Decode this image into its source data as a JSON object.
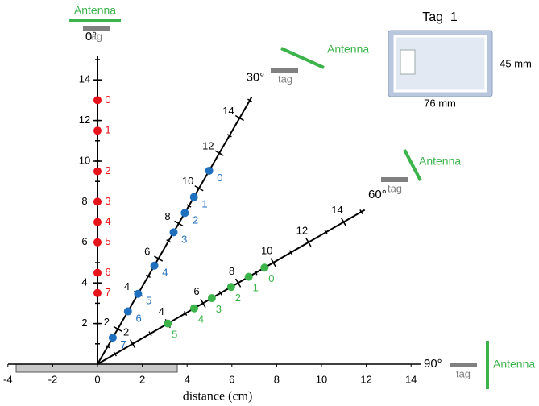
{
  "x_axis": {
    "label": "distance (cm)",
    "ticks": [
      -4,
      -2,
      0,
      2,
      4,
      6,
      8,
      10,
      12,
      14
    ]
  },
  "rays": [
    {
      "label": "0°",
      "angle": 0,
      "color": "#e8141c",
      "ticks": [
        2,
        4,
        6,
        8,
        10,
        12,
        14
      ],
      "points": [
        {
          "label": "0",
          "distance": 13
        },
        {
          "label": "1",
          "distance": 11.5
        },
        {
          "label": "2",
          "distance": 9.5
        },
        {
          "label": "3",
          "distance": 8
        },
        {
          "label": "4",
          "distance": 7
        },
        {
          "label": "5",
          "distance": 6
        },
        {
          "label": "6",
          "distance": 4.5
        },
        {
          "label": "7",
          "distance": 3.5
        }
      ]
    },
    {
      "label": "30°",
      "angle": 30,
      "color": "#1f6fbf",
      "ticks": [
        2,
        4,
        6,
        8,
        10,
        12,
        14
      ],
      "points": [
        {
          "label": "0",
          "distance": 11
        },
        {
          "label": "1",
          "distance": 9.5
        },
        {
          "label": "2",
          "distance": 8.6
        },
        {
          "label": "3",
          "distance": 7.5
        },
        {
          "label": "4",
          "distance": 5.6
        },
        {
          "label": "5",
          "distance": 4
        },
        {
          "label": "6",
          "distance": 3
        },
        {
          "label": "7",
          "distance": 1.5
        }
      ]
    },
    {
      "label": "60°",
      "angle": 60,
      "color": "#3cb44b",
      "ticks": [
        2,
        4,
        6,
        8,
        10,
        12,
        14
      ],
      "points": [
        {
          "label": "0",
          "distance": 9.5
        },
        {
          "label": "1",
          "distance": 8.6
        },
        {
          "label": "2",
          "distance": 7.6
        },
        {
          "label": "3",
          "distance": 6.5
        },
        {
          "label": "4",
          "distance": 5.5
        },
        {
          "label": "5",
          "distance": 4
        }
      ]
    }
  ],
  "ninety_label": "90°",
  "antennas": [
    {
      "label": "Antenna",
      "tag": "tag"
    },
    {
      "label": "Antenna",
      "tag": "tag"
    },
    {
      "label": "Antenna",
      "tag": "tag"
    },
    {
      "label": "Antenna",
      "tag": "tag"
    }
  ],
  "tag_photo": {
    "title": "Tag_1",
    "height": "45 mm",
    "width": "76 mm"
  }
}
